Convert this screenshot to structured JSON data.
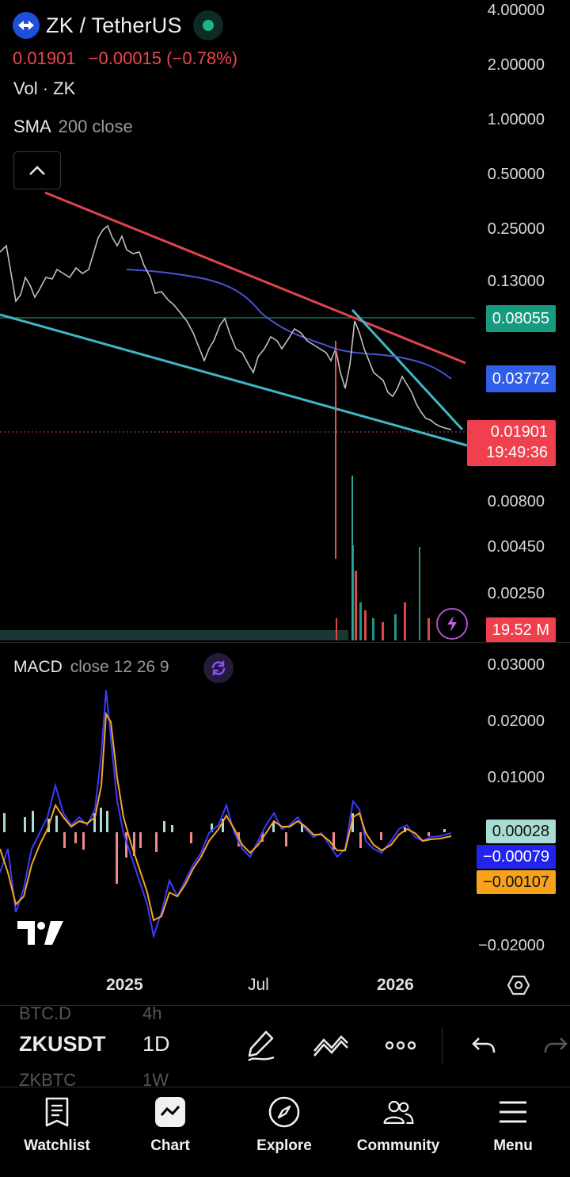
{
  "header": {
    "symbol_title": "ZK / TetherUS",
    "last_price": "0.01901",
    "change": "−0.00015 (−0.78%)",
    "volume_label": "Vol · ZK",
    "sma_label": "SMA",
    "sma_params": "200 close"
  },
  "price_scale": [
    "4.00000",
    "2.00000",
    "1.00000",
    "0.50000",
    "0.25000",
    "0.13000",
    "0.00800",
    "0.00450",
    "0.00250"
  ],
  "price_tags": {
    "horizontal_line": "0.08055",
    "sma_value": "0.03772",
    "last_price": "0.01901",
    "countdown": "19:49:36",
    "volume": "19.52 M"
  },
  "macd": {
    "title": "MACD",
    "params": "close 12 26 9",
    "scale": [
      "0.03000",
      "0.02000",
      "0.01000",
      "−0.02000"
    ],
    "histogram_tag": "0.00028",
    "macd_tag": "−0.00079",
    "signal_tag": "−0.00107"
  },
  "time_axis": [
    "2025",
    "Jul",
    "2026"
  ],
  "toolbar": {
    "symbol": "ZKUSDT",
    "interval": "1D",
    "ghost_above_symbol": "BTC.D",
    "ghost_above_interval": "4h",
    "ghost_below_symbol": "ZKBTC",
    "ghost_below_interval": "1W"
  },
  "nav": {
    "watchlist": "Watchlist",
    "chart": "Chart",
    "explore": "Explore",
    "community": "Community",
    "menu": "Menu"
  },
  "colors": {
    "bg": "#000000",
    "up": "#26a69a",
    "down": "#ef5350",
    "resistance_line": "#e0434e",
    "support_line": "#3fb8c4",
    "sma_line": "#4a52d6",
    "hline_tag": "#169b7e",
    "sma_tag": "#2f5fe8",
    "last_tag": "#f0404d",
    "macd_line": "#3b3bff",
    "signal_line": "#f5a623",
    "hist_tag": "#a8dcd4",
    "macd_tag": "#2323ee",
    "signal_tag": "#f7a21b"
  }
}
